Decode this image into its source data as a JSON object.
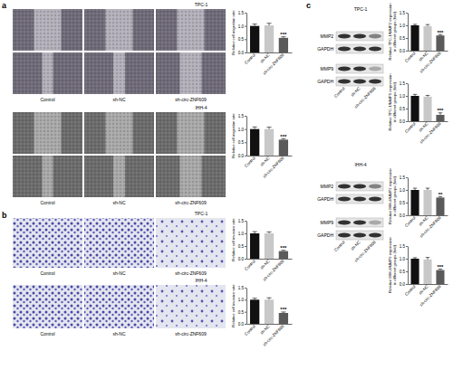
{
  "chart_data": [
    {
      "type": "bar",
      "categories": [
        "Control",
        "sh-NC",
        "sh-circ-ZNF609"
      ],
      "values": [
        1.0,
        1.02,
        0.55
      ],
      "errors": [
        0.07,
        0.08,
        0.04
      ],
      "significance": [
        null,
        null,
        "***"
      ],
      "colors": [
        "#111111",
        "#c8c8c8",
        "#5a5a5a"
      ],
      "ylim": [
        0,
        1.5
      ],
      "yticks": [
        {
          "value": 0,
          "label": "0.0"
        },
        {
          "value": 0.5,
          "label": "0.5"
        },
        {
          "value": 1,
          "label": "1.0"
        },
        {
          "value": 1.5,
          "label": "1.5"
        }
      ],
      "y_label": "Relative cell migration rate"
    },
    {
      "type": "bar",
      "categories": [
        "Control",
        "sh-NC",
        "sh-circ-ZNF609"
      ],
      "values": [
        1.0,
        1.0,
        0.6
      ],
      "errors": [
        0.08,
        0.07,
        0.04
      ],
      "significance": [
        null,
        null,
        "***"
      ],
      "colors": [
        "#111111",
        "#c8c8c8",
        "#5a5a5a"
      ],
      "ylim": [
        0,
        1.5
      ],
      "yticks": [
        {
          "value": 0,
          "label": "0.0"
        },
        {
          "value": 0.5,
          "label": "0.5"
        },
        {
          "value": 1,
          "label": "1.0"
        },
        {
          "value": 1.5,
          "label": "1.5"
        }
      ],
      "y_label": "Relative cell migration rate"
    },
    {
      "type": "bar",
      "categories": [
        "Control",
        "sh-NC",
        "sh-circ-ZNF609"
      ],
      "values": [
        1.0,
        1.0,
        0.3
      ],
      "errors": [
        0.07,
        0.06,
        0.03
      ],
      "significance": [
        null,
        null,
        "***"
      ],
      "colors": [
        "#111111",
        "#c8c8c8",
        "#5a5a5a"
      ],
      "ylim": [
        0,
        1.5
      ],
      "yticks": [
        {
          "value": 0,
          "label": "0.0"
        },
        {
          "value": 0.5,
          "label": "0.5"
        },
        {
          "value": 1,
          "label": "1.0"
        },
        {
          "value": 1.5,
          "label": "1.5"
        }
      ],
      "y_label": "Relative cell invasive rate"
    },
    {
      "type": "bar",
      "categories": [
        "Control",
        "sh-NC",
        "sh-circ-ZNF609"
      ],
      "values": [
        1.0,
        1.0,
        0.45
      ],
      "errors": [
        0.06,
        0.08,
        0.04
      ],
      "significance": [
        null,
        null,
        "***"
      ],
      "colors": [
        "#111111",
        "#c8c8c8",
        "#5a5a5a"
      ],
      "ylim": [
        0,
        1.5
      ],
      "yticks": [
        {
          "value": 0,
          "label": "0.0"
        },
        {
          "value": 0.5,
          "label": "0.5"
        },
        {
          "value": 1,
          "label": "1.0"
        },
        {
          "value": 1.5,
          "label": "1.5"
        }
      ],
      "y_label": "Relative cell invasive rate"
    },
    {
      "type": "bar",
      "categories": [
        "Control",
        "sh-NC",
        "sh-circ-ZNF609"
      ],
      "values": [
        1.0,
        0.97,
        0.6
      ],
      "errors": [
        0.04,
        0.06,
        0.04
      ],
      "significance": [
        null,
        null,
        "***"
      ],
      "colors": [
        "#111111",
        "#c8c8c8",
        "#5a5a5a"
      ],
      "ylim": [
        0,
        1.5
      ],
      "yticks": [
        {
          "value": 0,
          "label": "0.0"
        },
        {
          "value": 0.5,
          "label": "0.5"
        },
        {
          "value": 1,
          "label": "1.0"
        },
        {
          "value": 1.5,
          "label": "1.5"
        }
      ],
      "y_label": "Relative TPC-1/MMP2 expression in different groups (fold)"
    },
    {
      "type": "bar",
      "categories": [
        "Control",
        "sh-NC",
        "sh-circ-ZNF609"
      ],
      "values": [
        1.0,
        0.97,
        0.25
      ],
      "errors": [
        0.06,
        0.05,
        0.08
      ],
      "significance": [
        null,
        null,
        "***"
      ],
      "colors": [
        "#111111",
        "#c8c8c8",
        "#5a5a5a"
      ],
      "ylim": [
        0,
        1.5
      ],
      "yticks": [
        {
          "value": 0,
          "label": "0.0"
        },
        {
          "value": 0.5,
          "label": "0.5"
        },
        {
          "value": 1,
          "label": "1.0"
        },
        {
          "value": 1.5,
          "label": "1.5"
        }
      ],
      "y_label": "Relative TPC-1/MMP9 expression in different groups (fold)"
    },
    {
      "type": "bar",
      "categories": [
        "Control",
        "sh-NC",
        "sh-circ-ZNF609"
      ],
      "values": [
        1.0,
        1.0,
        0.7
      ],
      "errors": [
        0.07,
        0.07,
        0.04
      ],
      "significance": [
        null,
        null,
        "**"
      ],
      "colors": [
        "#111111",
        "#c8c8c8",
        "#5a5a5a"
      ],
      "ylim": [
        0,
        1.5
      ],
      "yticks": [
        {
          "value": 0,
          "label": "0.0"
        },
        {
          "value": 0.5,
          "label": "0.5"
        },
        {
          "value": 1,
          "label": "1.0"
        },
        {
          "value": 1.5,
          "label": "1.5"
        }
      ],
      "y_label": "Relative IHH-4/MMP2 expression in different groups (fold)"
    },
    {
      "type": "bar",
      "categories": [
        "Control",
        "sh-NC",
        "sh-circ-ZNF609"
      ],
      "values": [
        1.0,
        0.97,
        0.55
      ],
      "errors": [
        0.04,
        0.08,
        0.04
      ],
      "significance": [
        null,
        null,
        "***"
      ],
      "colors": [
        "#111111",
        "#c8c8c8",
        "#5a5a5a"
      ],
      "ylim": [
        0,
        1.5
      ],
      "yticks": [
        {
          "value": 0,
          "label": "0.0"
        },
        {
          "value": 0.5,
          "label": "0.5"
        },
        {
          "value": 1,
          "label": "1.0"
        },
        {
          "value": 1.5,
          "label": "1.5"
        }
      ],
      "y_label": "Relative IHH-4/MMP9 expression in different groups (fold)"
    }
  ],
  "figure": {
    "panels": [
      {
        "letter": "a",
        "groups": [
          {
            "cell_line": "TPC-1",
            "image_labels": [
              "Control",
              "sh-NC",
              "sh-circ-ZNF609"
            ]
          },
          {
            "cell_line": "IHH-4",
            "image_labels": [
              "Control",
              "sh-NC",
              "sh-circ-ZNF609"
            ]
          }
        ]
      },
      {
        "letter": "b",
        "groups": [
          {
            "cell_line": "TPC-1",
            "image_labels": [
              "Control",
              "sh-NC",
              "sh-circ-ZNF609"
            ]
          },
          {
            "cell_line": "IHH-4",
            "image_labels": [
              "Control",
              "sh-NC",
              "sh-circ-ZNF609"
            ]
          }
        ]
      },
      {
        "letter": "c",
        "groups": [
          {
            "cell_line": "TPC-1",
            "blot_rows": [
              "MMP2",
              "GAPDH",
              "MMP9",
              "GAPDH"
            ],
            "lane_labels": [
              "Control",
              "sh-NC",
              "sh-circ-ZNF609"
            ]
          },
          {
            "cell_line": "IHH-4",
            "blot_rows": [
              "MMP2",
              "GAPDH",
              "MMP9",
              "GAPDH"
            ],
            "lane_labels": [
              "Control",
              "sh-NC",
              "sh-circ-ZNF609"
            ]
          }
        ]
      }
    ]
  }
}
